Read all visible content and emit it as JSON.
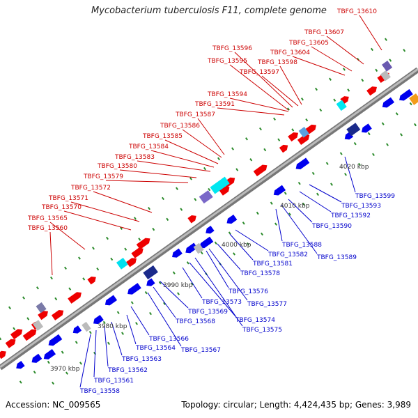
{
  "title": "Mycobacterium tuberculosis F11, complete genome",
  "footer": {
    "accession": "Accession: NC_009565",
    "info": "Topology: circular; Length: 4,424,435 bp; Genes: 3,989"
  },
  "colors": {
    "top_label": "#cc0000",
    "bottom_label": "#0000cc",
    "forward_gene": "#ee0000",
    "reverse_gene": "#0000ee",
    "backbone": "#999999",
    "tick": "#2a8a2a"
  },
  "scale_labels": [
    "3970 kbp",
    "3980 kbp",
    "3990 kbp",
    "4000 kbp",
    "4010 kbp",
    "4020 kbp"
  ],
  "top_genes": [
    "TBFG_13560",
    "TBFG_13565",
    "TBFG_13570",
    "TBFG_13571",
    "TBFG_13572",
    "TBFG_13579",
    "TBFG_13580",
    "TBFG_13583",
    "TBFG_13584",
    "TBFG_13585",
    "TBFG_13586",
    "TBFG_13587",
    "TBFG_13591",
    "TBFG_13594",
    "TBFG_13597",
    "TBFG_13595",
    "TBFG_13596",
    "TBFG_13598",
    "TBFG_13604",
    "TBFG_13605",
    "TBFG_13607",
    "TBFG_13610"
  ],
  "bottom_genes": [
    "TBFG_13558",
    "TBFG_13561",
    "TBFG_13562",
    "TBFG_13563",
    "TBFG_13564",
    "TBFG_13566",
    "TBFG_13567",
    "TBFG_13568",
    "TBFG_13569",
    "TBFG_13573",
    "TBFG_13574",
    "TBFG_13575",
    "TBFG_13576",
    "TBFG_13577",
    "TBFG_13578",
    "TBFG_13581",
    "TBFG_13582",
    "TBFG_13588",
    "TBFG_13589",
    "TBFG_13590",
    "TBFG_13592",
    "TBFG_13593",
    "TBFG_13599"
  ]
}
